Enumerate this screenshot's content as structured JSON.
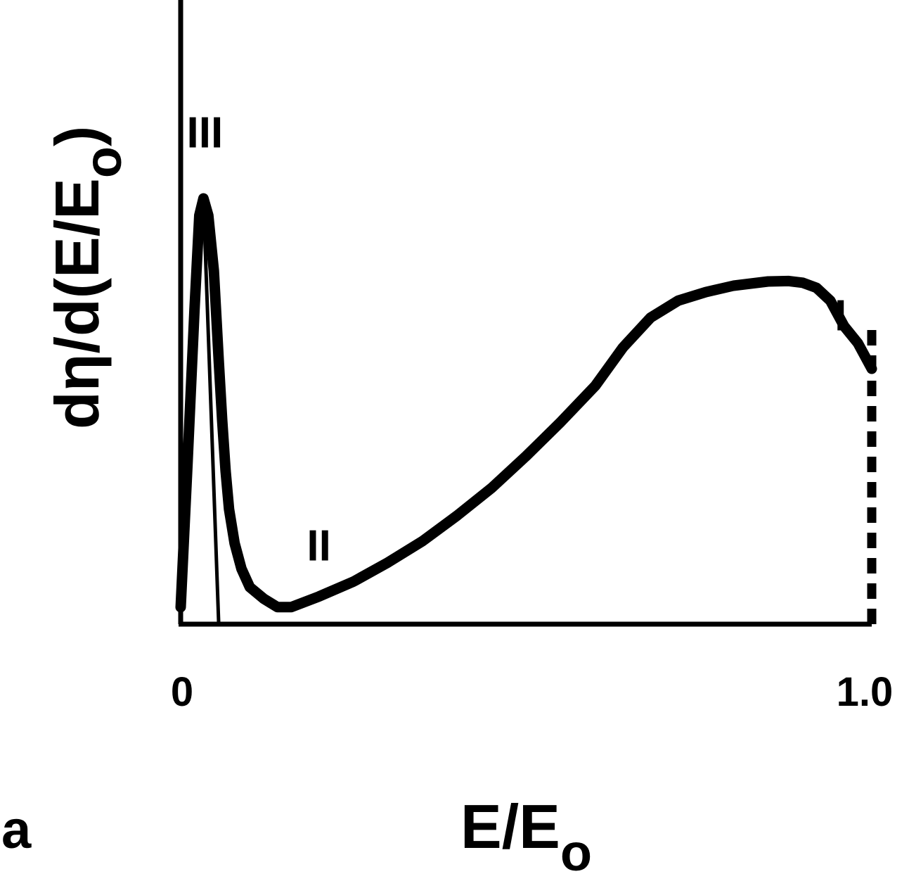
{
  "panel_label": "a",
  "chart_data": {
    "type": "line",
    "x_tick_labels": [
      "0",
      "1.0"
    ],
    "x_ticks": [
      0,
      1.0
    ],
    "xlim": [
      0,
      1.0
    ],
    "ylim": [
      0,
      1.0
    ],
    "xlabel_main": "E/E",
    "xlabel_sub": "o",
    "ylabel_main": "dη/d(E/E",
    "ylabel_sub": "o",
    "ylabel_close": ")",
    "annotations": [
      {
        "text": "III",
        "x": 0.035,
        "y": 1.12
      },
      {
        "text": "II",
        "x": 0.2,
        "y": 0.15
      },
      {
        "text": "I",
        "x": 0.955,
        "y": 0.69
      }
    ],
    "series": [
      {
        "style": "thick-solid",
        "x": [
          0.0,
          0.01,
          0.02,
          0.027,
          0.033,
          0.04,
          0.048,
          0.055,
          0.06,
          0.065,
          0.07,
          0.078,
          0.088,
          0.1,
          0.12,
          0.14,
          0.16,
          0.2,
          0.25,
          0.3,
          0.35,
          0.4,
          0.45,
          0.5,
          0.55,
          0.6,
          0.64,
          0.68,
          0.72,
          0.76,
          0.8,
          0.85,
          0.88,
          0.9,
          0.92,
          0.94,
          0.96,
          0.98,
          1.0
        ],
        "y": [
          0.04,
          0.38,
          0.74,
          0.96,
          1.0,
          0.96,
          0.83,
          0.62,
          0.48,
          0.36,
          0.27,
          0.19,
          0.13,
          0.087,
          0.06,
          0.04,
          0.04,
          0.065,
          0.1,
          0.145,
          0.195,
          0.255,
          0.32,
          0.395,
          0.475,
          0.56,
          0.65,
          0.72,
          0.76,
          0.78,
          0.795,
          0.805,
          0.806,
          0.802,
          0.79,
          0.76,
          0.7,
          0.66,
          0.6
        ]
      },
      {
        "style": "thin-solid",
        "x": [
          0.0,
          0.033,
          0.055
        ],
        "y": [
          0.04,
          1.0,
          0.0
        ]
      },
      {
        "style": "dashed",
        "x": [
          1.0,
          1.0
        ],
        "y": [
          0.0,
          0.7
        ]
      }
    ]
  }
}
